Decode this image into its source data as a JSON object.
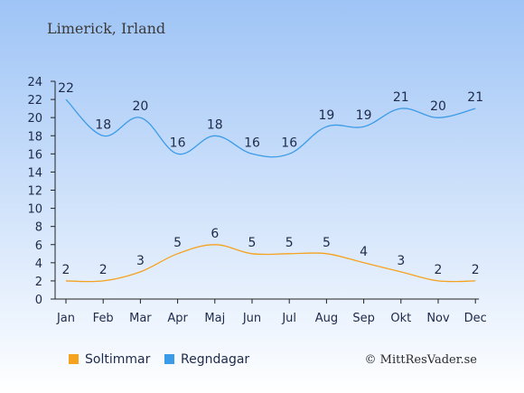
{
  "location": "Limerick, Irland",
  "copyright": "© MittResVader.se",
  "colors": {
    "background_top": "#9ec4f6",
    "background_bottom": "#ffffff",
    "sun_series": "#f5a21f",
    "rain_series": "#3c9be8",
    "axis": "#222222",
    "text": "#1e2a4a"
  },
  "chart_data": {
    "type": "line",
    "title": "Limerick, Irland",
    "categories": [
      "Jan",
      "Feb",
      "Mar",
      "Apr",
      "Maj",
      "Jun",
      "Jul",
      "Aug",
      "Sep",
      "Okt",
      "Nov",
      "Dec"
    ],
    "ylim": [
      0,
      24
    ],
    "yticks": [
      0,
      2,
      4,
      6,
      8,
      10,
      12,
      14,
      16,
      18,
      20,
      22,
      24
    ],
    "grid": false,
    "legend_position": "bottom-left",
    "series": [
      {
        "name": "Soltimmar",
        "color": "#f5a21f",
        "values": [
          2,
          2,
          3,
          5,
          6,
          5,
          5,
          5,
          4,
          3,
          2,
          2
        ]
      },
      {
        "name": "Regndagar",
        "color": "#3c9be8",
        "values": [
          22,
          18,
          20,
          16,
          18,
          16,
          16,
          19,
          19,
          21,
          20,
          21
        ]
      }
    ]
  }
}
